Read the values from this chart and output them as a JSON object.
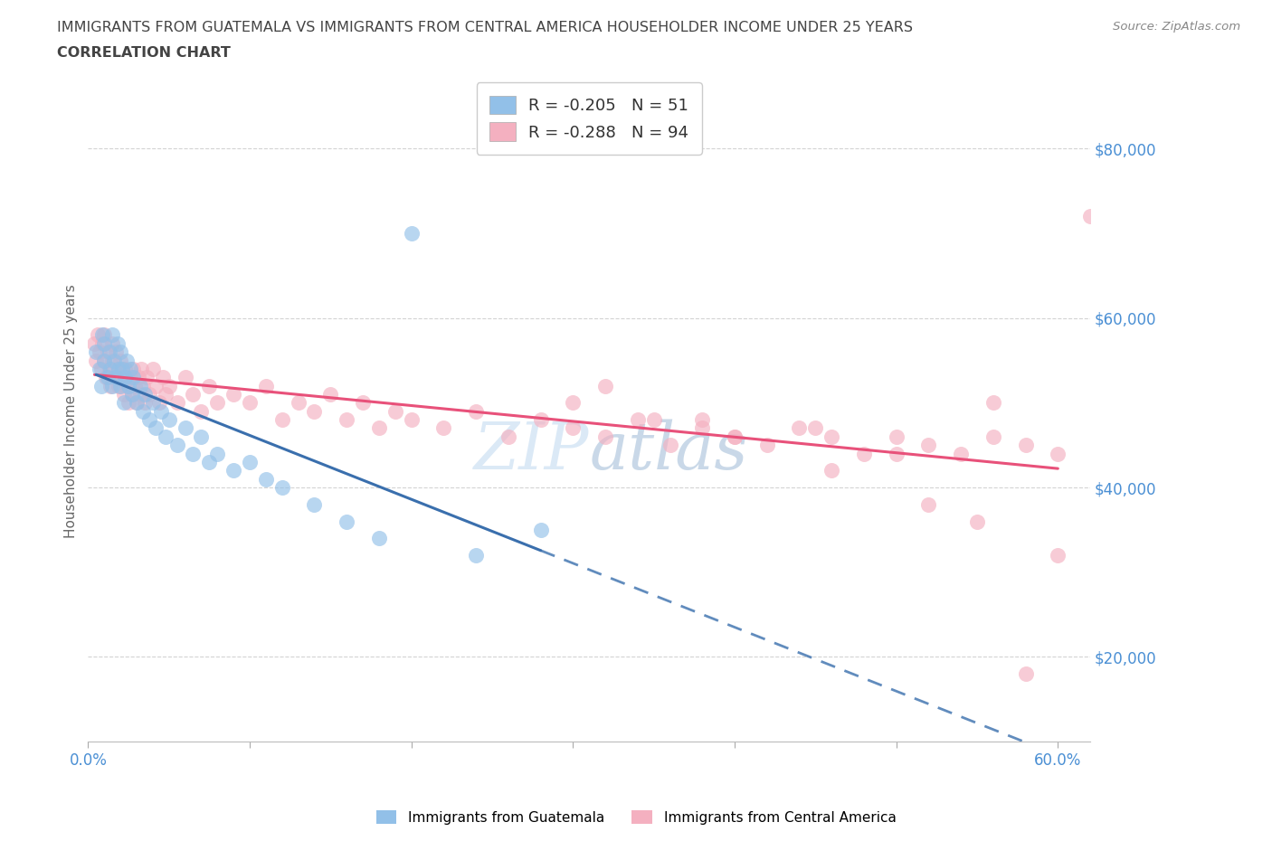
{
  "title_line1": "IMMIGRANTS FROM GUATEMALA VS IMMIGRANTS FROM CENTRAL AMERICA HOUSEHOLDER INCOME UNDER 25 YEARS",
  "title_line2": "CORRELATION CHART",
  "source": "Source: ZipAtlas.com",
  "ylabel": "Householder Income Under 25 years",
  "xlim": [
    0.0,
    0.62
  ],
  "ylim": [
    10000,
    88000
  ],
  "xticks": [
    0.0,
    0.1,
    0.2,
    0.3,
    0.4,
    0.5,
    0.6
  ],
  "xticklabels": [
    "0.0%",
    "",
    "",
    "",
    "",
    "",
    "60.0%"
  ],
  "yticks": [
    20000,
    40000,
    60000,
    80000
  ],
  "yticklabels": [
    "$20,000",
    "$40,000",
    "$60,000",
    "$80,000"
  ],
  "r_guatemala": -0.205,
  "n_guatemala": 51,
  "r_central": -0.288,
  "n_central": 94,
  "color_guatemala": "#92c0e8",
  "color_central": "#f4b0c0",
  "line_color_guatemala": "#3a6fad",
  "line_color_central": "#e8517a",
  "background_color": "#ffffff",
  "grid_color": "#c8c8c8",
  "title_color": "#444444",
  "tick_color": "#4a8fd4",
  "watermark_color": "#b8d4ee",
  "guatemala_x": [
    0.005,
    0.007,
    0.008,
    0.009,
    0.01,
    0.01,
    0.012,
    0.013,
    0.014,
    0.015,
    0.015,
    0.016,
    0.017,
    0.018,
    0.019,
    0.02,
    0.02,
    0.021,
    0.022,
    0.023,
    0.024,
    0.025,
    0.026,
    0.027,
    0.028,
    0.03,
    0.032,
    0.034,
    0.035,
    0.038,
    0.04,
    0.042,
    0.045,
    0.048,
    0.05,
    0.055,
    0.06,
    0.065,
    0.07,
    0.075,
    0.08,
    0.09,
    0.1,
    0.11,
    0.12,
    0.14,
    0.16,
    0.18,
    0.2,
    0.24,
    0.28
  ],
  "guatemala_y": [
    56000,
    54000,
    52000,
    58000,
    57000,
    55000,
    53000,
    56000,
    54000,
    52000,
    58000,
    55000,
    53000,
    57000,
    54000,
    52000,
    56000,
    54000,
    50000,
    53000,
    55000,
    52000,
    54000,
    51000,
    53000,
    50000,
    52000,
    49000,
    51000,
    48000,
    50000,
    47000,
    49000,
    46000,
    48000,
    45000,
    47000,
    44000,
    46000,
    43000,
    44000,
    42000,
    43000,
    41000,
    40000,
    38000,
    36000,
    34000,
    70000,
    32000,
    35000
  ],
  "central_x": [
    0.004,
    0.005,
    0.006,
    0.007,
    0.008,
    0.009,
    0.01,
    0.01,
    0.011,
    0.012,
    0.013,
    0.014,
    0.015,
    0.015,
    0.016,
    0.017,
    0.018,
    0.019,
    0.02,
    0.021,
    0.022,
    0.023,
    0.024,
    0.025,
    0.026,
    0.027,
    0.028,
    0.029,
    0.03,
    0.031,
    0.032,
    0.033,
    0.034,
    0.035,
    0.036,
    0.038,
    0.04,
    0.042,
    0.044,
    0.046,
    0.048,
    0.05,
    0.055,
    0.06,
    0.065,
    0.07,
    0.075,
    0.08,
    0.09,
    0.1,
    0.11,
    0.12,
    0.13,
    0.14,
    0.15,
    0.16,
    0.17,
    0.18,
    0.19,
    0.2,
    0.22,
    0.24,
    0.26,
    0.28,
    0.3,
    0.32,
    0.34,
    0.36,
    0.38,
    0.4,
    0.42,
    0.44,
    0.46,
    0.48,
    0.5,
    0.52,
    0.54,
    0.56,
    0.58,
    0.3,
    0.35,
    0.4,
    0.45,
    0.5,
    0.55,
    0.6,
    0.32,
    0.38,
    0.46,
    0.52,
    0.56,
    0.58,
    0.6,
    0.62
  ],
  "central_y": [
    57000,
    55000,
    58000,
    56000,
    54000,
    57000,
    55000,
    58000,
    53000,
    56000,
    54000,
    52000,
    57000,
    55000,
    53000,
    56000,
    54000,
    52000,
    55000,
    53000,
    51000,
    54000,
    52000,
    50000,
    53000,
    51000,
    54000,
    52000,
    50000,
    53000,
    51000,
    54000,
    52000,
    50000,
    53000,
    51000,
    54000,
    52000,
    50000,
    53000,
    51000,
    52000,
    50000,
    53000,
    51000,
    49000,
    52000,
    50000,
    51000,
    50000,
    52000,
    48000,
    50000,
    49000,
    51000,
    48000,
    50000,
    47000,
    49000,
    48000,
    47000,
    49000,
    46000,
    48000,
    47000,
    46000,
    48000,
    45000,
    47000,
    46000,
    45000,
    47000,
    46000,
    44000,
    46000,
    45000,
    44000,
    46000,
    45000,
    50000,
    48000,
    46000,
    47000,
    44000,
    36000,
    32000,
    52000,
    48000,
    42000,
    38000,
    50000,
    18000,
    44000,
    72000
  ]
}
